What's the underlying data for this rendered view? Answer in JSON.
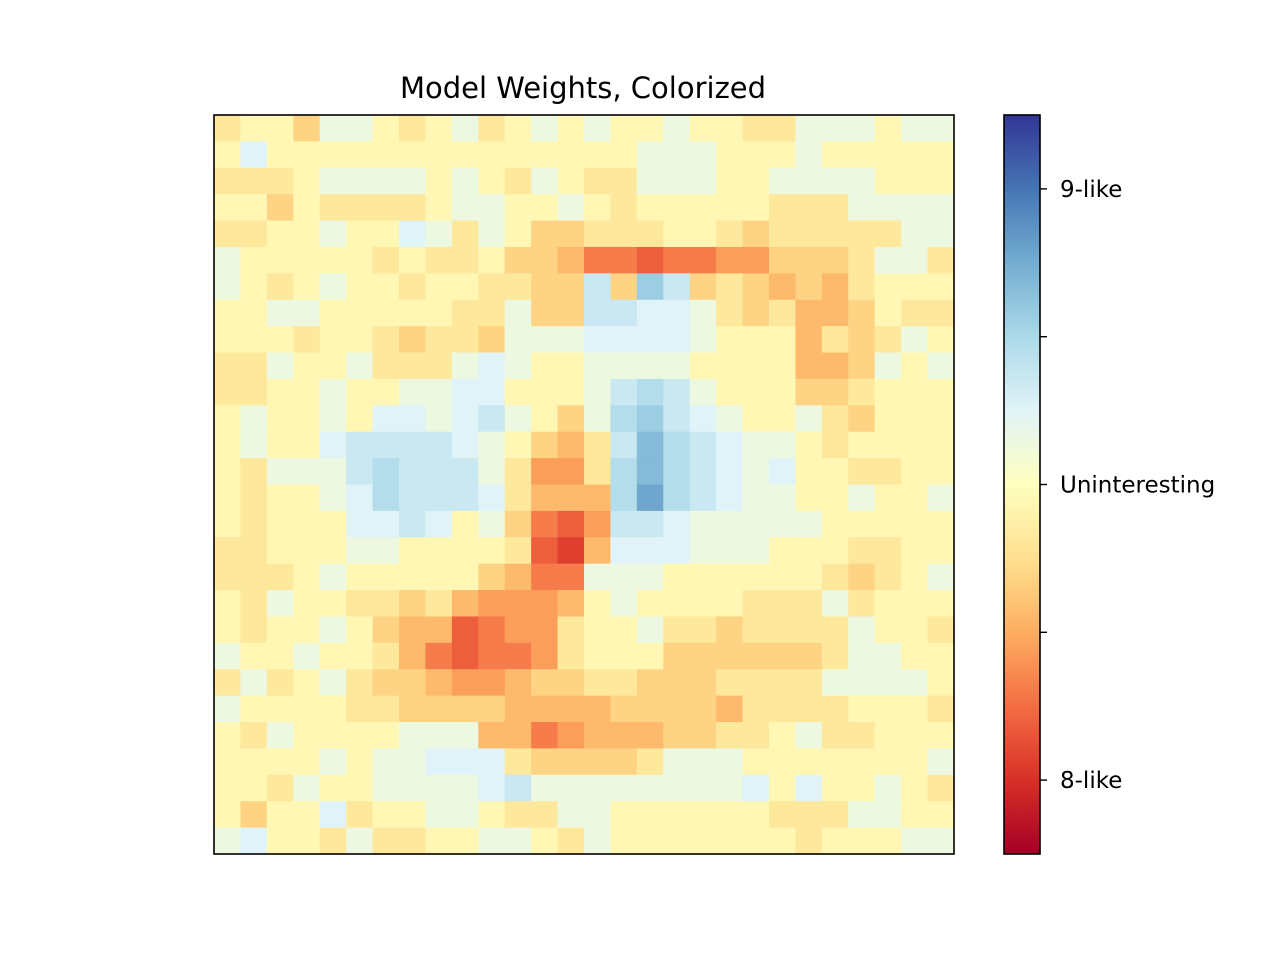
{
  "chart_data": {
    "type": "heatmap",
    "title": "Model Weights, Colorized",
    "xlabel": "",
    "ylabel": "",
    "rows": 28,
    "cols": 28,
    "colormap": "RdYlBu",
    "value_range": [
      -1,
      1
    ],
    "colorbar": {
      "position": "right",
      "ticks": [
        {
          "value": -0.8,
          "label": "8-like"
        },
        {
          "value": -0.4,
          "label": ""
        },
        {
          "value": 0.0,
          "label": "Uninteresting"
        },
        {
          "value": 0.4,
          "label": ""
        },
        {
          "value": 0.8,
          "label": "9-like"
        }
      ]
    },
    "matrix_rows": [
      "1,0,0,2,0,0,0,1,0,0,1,0,0,0,0,0,0,0,0,0,1,1,0,0,0,0,0,0",
      "0,0,0,0,0,0,0,0,0,0,0,0,0,0,0,0,0,0,0,0,0,0,0,0,0,0,0,0",
      "1,1,1,0,0,0,0,0,0,0,0,1,0,0,1,1,0,0,0,0,0,0,0,0,0,0,0,0",
      "0,0,2,0,1,1,1,1,0,0,0,0,0,0,0,1,0,0,0,0,0,1,1,1,0,0,0,0",
      "1,1,0,0,0,0,0,0,0,1,0,0,2,2,1,1,1,0,0,1,2,1,1,1,1,1,0,0",
      "0,0,0,0,0,0,1,0,1,1,0,2,2,3,5,5,6,5,5,4,4,2,2,2,1,0,0,1",
      "0,0,1,0,0,0,0,1,0,0,1,1,2,2,1,2,1,1,2,1,2,3,2,3,1,0,0,0",
      "0,0,0,0,0,0,0,0,0,1,1,0,2,2,0,0,0,0,0,1,2,1,3,3,2,0,1,1",
      "0,0,0,1,0,0,1,2,1,1,2,0,0,0,0,0,0,0,0,0,0,0,3,1,2,1,0,0",
      "1,1,0,0,0,0,1,1,1,1,0,0,0,0,0,0,0,0,0,0,0,0,3,3,2,1,0,0",
      "1,1,0,0,1,0,0,0,0,0,0,0,0,0,0,0,0,0,0,0,0,0,2,2,1,0,0,0",
      "0,0,0,0,0,0,1,0,0,0,0,0,0,2,1,0,0,0,0,0,0,0,1,1,2,0,0,0",
      "0,0,0,0,0,0,0,0,0,0,0,0,2,3,1,0,0,0,0,0,1,1,0,1,0,0,0,0",
      "0,1,0,0,0,0,0,0,0,0,0,1,4,4,1,0,0,0,0,0,1,0,0,0,1,1,0,0",
      "0,1,0,0,0,0,0,0,0,0,0,1,3,3,3,0,0,0,0,0,0,0,0,0,0,0,0,0",
      "0,1,0,0,0,0,0,0,0,0,0,2,5,6,4,0,0,0,0,0,0,0,0,0,0,0,0,0",
      "1,1,0,0,0,0,0,0,0,0,0,1,6,7,3,0,0,0,0,0,0,0,0,0,1,1,0,0",
      "1,1,1,0,0,0,0,0,0,0,2,3,5,5,1,0,0,0,0,0,0,0,0,1,2,1,0,0",
      "0,1,0,0,0,1,1,2,1,3,4,4,4,3,0,0,0,0,0,0,1,1,1,1,1,0,0,0",
      "0,1,0,0,1,0,2,3,3,6,5,4,4,1,0,0,0,1,1,2,1,1,1,1,0,0,0,1",
      "0,0,0,0,0,0,1,3,5,6,5,5,4,1,0,0,0,2,2,2,2,2,2,1,0,0,0,0",
      "1,1,1,0,0,1,2,2,3,4,4,3,2,2,1,1,2,2,2,1,1,1,1,1,0,0,0,0",
      "0,0,0,0,0,1,1,2,2,2,2,3,3,3,3,2,2,2,2,3,1,1,1,1,0,0,0,1",
      "0,1,0,0,0,0,0,0,0,0,3,3,5,4,3,3,3,2,2,1,1,0,0,1,1,0,0,0",
      "0,0,0,0,0,0,0,0,0,0,0,1,2,2,2,2,1,0,0,0,0,0,0,0,0,0,0,0",
      "0,0,1,0,0,0,0,0,0,0,0,0,0,0,0,0,0,0,0,0,0,0,0,0,0,0,0,1",
      "0,2,0,0,0,1,0,0,0,0,0,1,1,1,0,0,0,0,0,0,0,1,1,1,0,0,0,0",
      "0,0,0,0,1,0,1,1,0,0,0,0,0,1,0,0,0,0,0,0,0,0,1,0,0,0,0,0"
    ],
    "cool_rows": [
      "0,0,0,0,1,1,0,0,0,1,0,0,1,0,1,0,0,1,0,0,0,0,1,1,1,0,1,1",
      "0,2,0,0,0,0,0,0,0,0,0,0,0,0,0,0,1,1,1,0,0,0,1,0,0,0,0,0",
      "0,0,0,0,1,1,1,1,0,1,0,0,1,0,0,0,1,1,1,0,0,1,1,1,1,0,0,0",
      "0,0,0,0,0,0,0,0,0,1,1,0,0,1,0,0,0,0,0,0,0,0,0,0,1,1,1,1",
      "0,0,0,0,1,0,0,2,1,0,1,0,0,0,0,0,0,0,0,0,0,0,0,0,0,0,1,1",
      "1,0,0,0,0,0,0,0,0,0,0,0,0,0,0,0,0,0,0,0,0,0,0,0,0,1,1,0",
      "1,0,0,0,1,0,0,0,0,0,0,0,0,1,3,4,5,3,0,0,0,0,0,0,0,0,0,0",
      "0,0,1,1,0,0,0,0,0,0,0,1,1,2,3,3,2,2,1,0,0,0,0,0,0,0,0,0",
      "0,0,0,0,0,0,0,0,0,0,1,1,1,1,2,2,2,2,1,0,0,0,0,0,0,0,1,0",
      "0,0,1,0,0,1,0,0,0,1,2,1,0,0,1,1,1,1,0,0,0,0,0,0,0,1,0,1",
      "0,0,0,0,1,0,0,1,1,2,2,0,0,0,1,3,4,3,1,0,0,0,0,0,0,0,0,0",
      "0,1,0,0,1,0,2,2,1,2,3,1,0,0,1,4,5,3,2,1,0,0,1,0,0,0,0,0",
      "0,1,0,0,2,3,3,3,3,2,1,0,0,0,0,3,6,4,3,2,1,1,0,0,0,0,0,0",
      "0,0,1,1,1,3,4,3,3,3,1,0,0,0,0,4,6,4,3,2,1,2,0,0,0,0,0,0",
      "0,0,0,0,1,2,4,3,3,3,2,0,0,0,0,4,7,4,3,2,1,1,0,0,1,0,0,1",
      "0,0,0,0,0,2,2,3,2,0,1,0,0,0,1,3,3,2,1,1,1,1,1,0,0,0,0,0",
      "0,0,0,0,0,1,1,0,0,0,0,0,0,0,2,2,2,2,1,1,1,0,0,0,0,0,0,0",
      "0,0,0,0,1,0,0,0,0,0,0,0,0,1,1,1,1,0,0,0,0,0,0,0,0,0,0,1",
      "0,0,1,0,0,0,0,0,0,0,0,0,0,0,0,1,0,0,0,0,0,0,0,1,0,0,0,0",
      "0,0,0,0,1,0,0,0,0,0,0,0,0,0,0,0,1,0,0,0,0,0,0,0,1,0,0,0",
      "1,0,0,1,0,0,0,0,0,0,0,0,0,0,0,0,0,0,0,0,0,0,0,0,1,1,0,0",
      "0,1,0,0,1,0,0,0,0,0,0,0,0,0,0,0,0,0,0,0,0,0,0,1,1,1,1,0",
      "1,0,0,0,0,0,0,0,0,0,0,0,0,0,0,0,0,0,0,0,0,0,0,0,0,0,0,0",
      "0,0,1,0,0,0,0,1,1,1,0,0,0,0,0,0,0,0,0,0,0,0,1,0,0,0,0,0",
      "0,0,0,0,1,0,1,1,2,2,2,0,0,0,0,0,0,1,1,1,0,0,0,0,0,0,0,1",
      "0,0,0,1,0,0,1,1,1,1,2,3,1,1,1,1,1,1,1,1,2,0,2,0,0,1,0,0",
      "0,0,0,0,2,0,0,0,1,1,0,0,0,1,1,0,0,0,0,0,0,0,0,0,1,1,0,0",
      "1,2,0,0,0,1,0,0,0,0,1,1,0,0,1,0,0,0,0,0,0,0,0,0,0,0,1,1"
    ]
  },
  "colors": {
    "frame": "#000000",
    "background": "#ffffff"
  }
}
